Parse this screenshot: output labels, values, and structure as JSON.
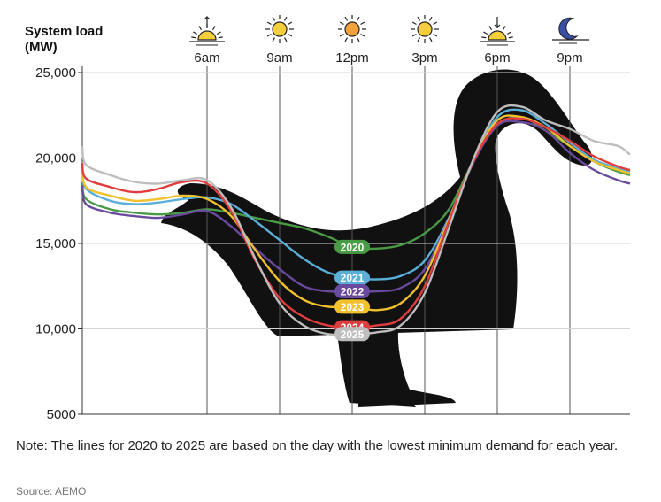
{
  "chart_data": {
    "type": "line",
    "ylabel": "System load\n(MW)",
    "y_ticks": [
      "25,000",
      "20,000",
      "15,000",
      "10,000",
      "5000"
    ],
    "y_tick_values": [
      25000,
      20000,
      15000,
      10000,
      5000
    ],
    "ylim": [
      5000,
      25000
    ],
    "x_ticks": [
      {
        "label": "6am",
        "hour": 6,
        "icon": "sunrise-icon"
      },
      {
        "label": "9am",
        "hour": 9,
        "icon": "sun-icon"
      },
      {
        "label": "12pm",
        "hour": 12,
        "icon": "sun-noon-icon"
      },
      {
        "label": "3pm",
        "hour": 15,
        "icon": "sun-icon"
      },
      {
        "label": "6pm",
        "hour": 18,
        "icon": "sunset-icon"
      },
      {
        "label": "9pm",
        "hour": 21,
        "icon": "moon-icon"
      }
    ],
    "xlim": [
      0,
      24
    ],
    "grid": "vertical",
    "background_image": "duck-silhouette",
    "x": [
      0,
      1,
      2,
      3,
      4,
      5,
      6,
      7,
      8,
      9,
      10,
      11,
      12,
      13,
      14,
      15,
      16,
      17,
      18,
      19,
      20,
      21,
      22,
      23,
      24
    ],
    "series": [
      {
        "name": "2020",
        "color": "#4a9b45",
        "values": [
          18600,
          17600,
          17000,
          16800,
          16700,
          16800,
          17000,
          16800,
          16500,
          16200,
          15900,
          15400,
          14800,
          14700,
          14900,
          15600,
          17000,
          19800,
          21900,
          22400,
          21600,
          20700,
          19800,
          19200,
          19000
        ]
      },
      {
        "name": "2021",
        "color": "#5aaed8",
        "values": [
          19300,
          18200,
          17500,
          17300,
          17400,
          17600,
          17700,
          17300,
          16300,
          15200,
          14100,
          13300,
          13000,
          12900,
          13100,
          14000,
          16500,
          19800,
          22400,
          22800,
          22000,
          20900,
          19900,
          19400,
          19200
        ]
      },
      {
        "name": "2022",
        "color": "#6a4a9c",
        "values": [
          18400,
          17300,
          16800,
          16600,
          16500,
          16700,
          16900,
          16000,
          14700,
          13500,
          12500,
          12200,
          12200,
          12200,
          12400,
          13500,
          16400,
          19700,
          21900,
          22100,
          21600,
          20300,
          19300,
          18700,
          18500
        ]
      },
      {
        "name": "2023",
        "color": "#f2c12e",
        "values": [
          19500,
          18300,
          17800,
          17500,
          17600,
          17800,
          17600,
          16600,
          14600,
          12800,
          11700,
          11300,
          11300,
          11100,
          11500,
          13100,
          16400,
          19800,
          22200,
          22400,
          21800,
          20700,
          19800,
          19300,
          19100
        ]
      },
      {
        "name": "2024",
        "color": "#e03e3e",
        "values": [
          19700,
          18800,
          18300,
          18000,
          18200,
          18600,
          18500,
          16900,
          14000,
          11800,
          10700,
          10200,
          10100,
          10200,
          10600,
          12500,
          16300,
          19800,
          22000,
          22300,
          21800,
          21000,
          20100,
          19500,
          19300
        ]
      },
      {
        "name": "2025",
        "color": "#bdbdbd",
        "values": [
          20700,
          19600,
          19000,
          18600,
          18500,
          18700,
          18700,
          17100,
          14100,
          11500,
          10200,
          9700,
          9700,
          9800,
          10200,
          12100,
          15900,
          19900,
          22700,
          23000,
          22200,
          21700,
          21000,
          20700,
          20200
        ]
      }
    ]
  },
  "note": "Note: The lines for 2020 to 2025 are based on the day with the lowest minimum demand for each year.",
  "source": "Source: AEMO"
}
